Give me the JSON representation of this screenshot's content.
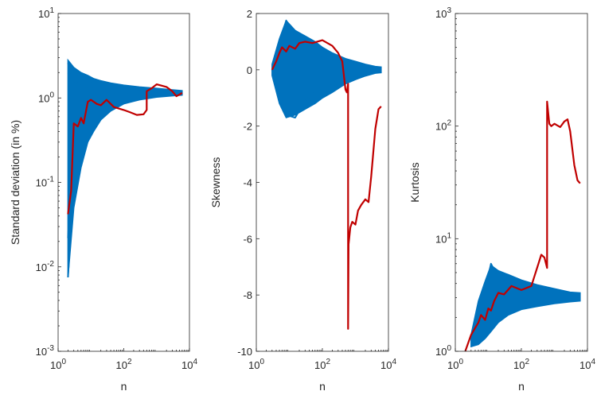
{
  "colors": {
    "simulated": "#0072BD",
    "observed": "#C00000",
    "axis": "#262626",
    "background": "#ffffff"
  },
  "chart_data": [
    {
      "type": "line",
      "xlabel": "n",
      "ylabel": "Standard deviation (in %)",
      "xscale": "log",
      "yscale": "log",
      "xlim": [
        1,
        10000
      ],
      "ylim": [
        0.001,
        10
      ],
      "xticks": [
        1,
        100,
        10000
      ],
      "xtick_labels": [
        {
          "base": "10",
          "exp": "0"
        },
        {
          "base": "10",
          "exp": "2"
        },
        {
          "base": "10",
          "exp": "4"
        }
      ],
      "yticks": [
        0.001,
        0.01,
        0.1,
        1,
        10
      ],
      "ytick_labels": [
        {
          "base": "10",
          "exp": "-3"
        },
        {
          "base": "10",
          "exp": "-2"
        },
        {
          "base": "10",
          "exp": "-1"
        },
        {
          "base": "10",
          "exp": "0"
        },
        {
          "base": "10",
          "exp": "1"
        }
      ],
      "grid": false,
      "band": {
        "x": [
          2,
          3,
          5,
          8,
          12,
          20,
          40,
          100,
          300,
          1000,
          3000,
          6000
        ],
        "upper": [
          2.8,
          2.3,
          2.0,
          1.85,
          1.7,
          1.6,
          1.5,
          1.42,
          1.35,
          1.3,
          1.25,
          1.22
        ],
        "lower": [
          0.0075,
          0.05,
          0.15,
          0.3,
          0.4,
          0.55,
          0.7,
          0.85,
          0.95,
          1.02,
          1.06,
          1.08
        ]
      },
      "series": [
        {
          "role": "simulated",
          "x": [
            2,
            3,
            5,
            10,
            20,
            50,
            100,
            300,
            1000,
            3000,
            6000
          ],
          "y": [
            2.6,
            1.6,
            1.4,
            1.3,
            1.25,
            1.2,
            1.2,
            1.15,
            1.15,
            1.15,
            1.15
          ]
        },
        {
          "role": "simulated",
          "x": [
            2,
            3,
            5,
            10,
            20,
            50,
            100,
            300,
            1000,
            3000,
            6000
          ],
          "y": [
            0.0075,
            0.12,
            0.6,
            0.9,
            1.0,
            1.05,
            1.1,
            1.15,
            1.15,
            1.15,
            1.15
          ]
        },
        {
          "role": "simulated",
          "x": [
            2,
            3,
            5,
            10,
            20,
            50,
            100,
            300,
            1000,
            3000,
            6000
          ],
          "y": [
            0.022,
            0.3,
            0.5,
            0.95,
            1.1,
            1.15,
            1.2,
            1.2,
            1.18,
            1.15,
            1.15
          ]
        },
        {
          "role": "simulated",
          "x": [
            2,
            3,
            5,
            10,
            20,
            50,
            100,
            300,
            1000,
            3000,
            6000
          ],
          "y": [
            1.9,
            2.2,
            1.7,
            1.5,
            1.35,
            1.3,
            1.25,
            1.2,
            1.18,
            1.16,
            1.15
          ]
        },
        {
          "role": "observed",
          "x": [
            2,
            2.5,
            3,
            4,
            5,
            6,
            8,
            10,
            15,
            20,
            30,
            50,
            100,
            150,
            250,
            400,
            500,
            500,
            700,
            1000,
            2000,
            3000,
            4000,
            5000,
            6000
          ],
          "y": [
            0.042,
            0.08,
            0.5,
            0.46,
            0.58,
            0.5,
            0.9,
            0.95,
            0.85,
            0.82,
            0.95,
            0.78,
            0.72,
            0.68,
            0.63,
            0.64,
            0.72,
            1.2,
            1.3,
            1.45,
            1.35,
            1.2,
            1.05,
            1.1,
            1.15
          ]
        }
      ]
    },
    {
      "type": "line",
      "xlabel": "n",
      "ylabel": "Skewness",
      "xscale": "log",
      "yscale": "linear",
      "xlim": [
        1,
        10000
      ],
      "ylim": [
        -10,
        2
      ],
      "xticks": [
        1,
        100,
        10000
      ],
      "xtick_labels": [
        {
          "base": "10",
          "exp": "0"
        },
        {
          "base": "10",
          "exp": "2"
        },
        {
          "base": "10",
          "exp": "4"
        }
      ],
      "yticks": [
        -10,
        -8,
        -6,
        -4,
        -2,
        0,
        2
      ],
      "ytick_labels": [
        "-10",
        "-8",
        "-6",
        "-4",
        "-2",
        "0",
        "2"
      ],
      "grid": false,
      "band": {
        "x": [
          3,
          5,
          8,
          15,
          30,
          60,
          100,
          200,
          500,
          1000,
          2000,
          4000,
          6000
        ],
        "upper": [
          0.2,
          1.1,
          1.75,
          1.4,
          1.2,
          1.0,
          0.8,
          0.6,
          0.4,
          0.3,
          0.2,
          0.12,
          0.1
        ],
        "lower": [
          -0.2,
          -1.2,
          -1.7,
          -1.6,
          -1.4,
          -1.2,
          -1.0,
          -0.8,
          -0.5,
          -0.35,
          -0.22,
          -0.12,
          -0.1
        ]
      },
      "series": [
        {
          "role": "simulated",
          "x": [
            3,
            5,
            8,
            15,
            30,
            60,
            100,
            300,
            1000,
            3000,
            6000
          ],
          "y": [
            0,
            0.8,
            1.75,
            1.2,
            0.9,
            0.6,
            0.4,
            0.3,
            0.2,
            0.1,
            0.05
          ]
        },
        {
          "role": "simulated",
          "x": [
            3,
            5,
            8,
            15,
            30,
            60,
            100,
            300,
            1000,
            3000,
            6000
          ],
          "y": [
            0,
            -0.9,
            -1.6,
            -1.7,
            -1.1,
            -0.8,
            -0.6,
            -0.4,
            -0.2,
            -0.1,
            -0.05
          ]
        },
        {
          "role": "observed",
          "x": [
            3,
            4,
            5,
            6,
            8,
            10,
            15,
            20,
            30,
            50,
            100,
            200,
            300,
            400,
            500,
            550,
            600,
            600,
            620,
            700,
            800,
            1000,
            1200,
            1500,
            2000,
            2500,
            3000,
            4000,
            5000,
            6000
          ],
          "y": [
            0,
            0.3,
            0.6,
            0.8,
            0.65,
            0.85,
            0.75,
            0.95,
            1.0,
            0.95,
            1.05,
            0.85,
            0.6,
            0.3,
            -0.7,
            -0.8,
            -0.5,
            -9.2,
            -6.2,
            -5.6,
            -5.4,
            -5.5,
            -5.0,
            -4.8,
            -4.6,
            -4.7,
            -3.8,
            -2.1,
            -1.4,
            -1.3
          ]
        }
      ]
    },
    {
      "type": "line",
      "xlabel": "n",
      "ylabel": "Kurtosis",
      "xscale": "log",
      "yscale": "log",
      "xlim": [
        1,
        10000
      ],
      "ylim": [
        1,
        1000
      ],
      "xticks": [
        1,
        100,
        10000
      ],
      "xtick_labels": [
        {
          "base": "10",
          "exp": "0"
        },
        {
          "base": "10",
          "exp": "2"
        },
        {
          "base": "10",
          "exp": "4"
        }
      ],
      "yticks": [
        1,
        10,
        100,
        1000
      ],
      "ytick_labels": [
        {
          "base": "10",
          "exp": "0"
        },
        {
          "base": "10",
          "exp": "1"
        },
        {
          "base": "10",
          "exp": "2"
        },
        {
          "base": "10",
          "exp": "3"
        }
      ],
      "grid": false,
      "band": {
        "x": [
          3,
          5,
          8,
          12,
          20,
          40,
          100,
          300,
          1000,
          3000,
          6000
        ],
        "upper": [
          1.4,
          2.8,
          4.2,
          5.8,
          5.2,
          4.8,
          4.3,
          3.9,
          3.6,
          3.35,
          3.3
        ],
        "lower": [
          1.1,
          1.15,
          1.3,
          1.5,
          1.8,
          2.1,
          2.35,
          2.5,
          2.65,
          2.75,
          2.8
        ]
      },
      "series": [
        {
          "role": "simulated",
          "x": [
            3,
            5,
            8,
            12,
            20,
            40,
            100,
            300,
            1000,
            3000,
            6000
          ],
          "y": [
            1.3,
            2.2,
            3.5,
            6.0,
            4.5,
            4.0,
            3.8,
            3.6,
            3.3,
            3.1,
            3.05
          ]
        },
        {
          "role": "simulated",
          "x": [
            3,
            5,
            8,
            12,
            20,
            40,
            100,
            300,
            1000,
            3000,
            6000
          ],
          "y": [
            1.1,
            1.3,
            1.5,
            1.7,
            2.0,
            2.3,
            2.5,
            2.7,
            2.8,
            2.9,
            2.95
          ]
        },
        {
          "role": "observed",
          "x": [
            2,
            3,
            5,
            6,
            8,
            10,
            12,
            15,
            20,
            30,
            50,
            100,
            200,
            400,
            500,
            600,
            600,
            700,
            800,
            1000,
            1500,
            2000,
            2500,
            3000,
            4000,
            5000,
            6000
          ],
          "y": [
            1.0,
            1.4,
            1.8,
            2.1,
            1.9,
            2.4,
            2.3,
            2.8,
            3.3,
            3.2,
            3.8,
            3.5,
            3.8,
            7.2,
            6.8,
            5.5,
            165,
            105,
            100,
            105,
            98,
            110,
            115,
            90,
            45,
            33,
            31
          ]
        }
      ]
    }
  ]
}
